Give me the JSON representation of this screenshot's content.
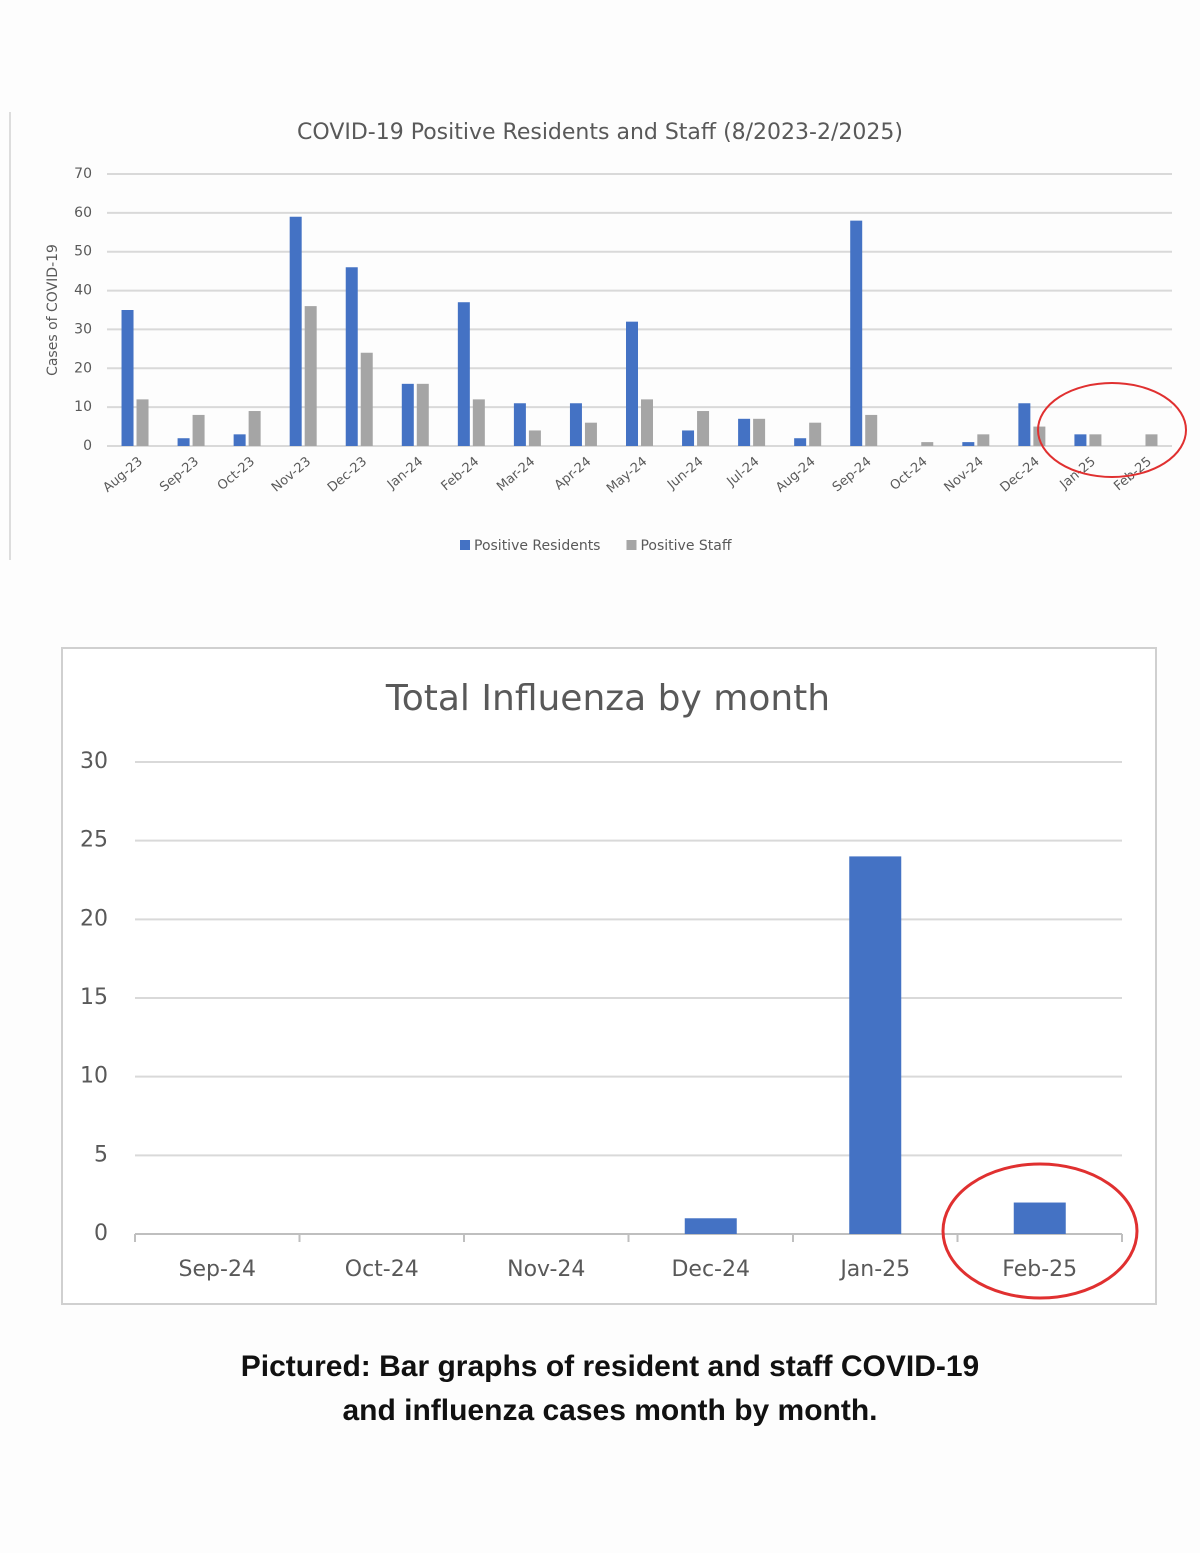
{
  "chart_data": [
    {
      "type": "bar",
      "title": "COVID-19 Positive Residents and Staff (8/2023-2/2025)",
      "y_label": "Cases of COVID-19",
      "categories": [
        "Aug-23",
        "Sep-23",
        "Oct-23",
        "Nov-23",
        "Dec-23",
        "Jan-24",
        "Feb-24",
        "Mar-24",
        "Apr-24",
        "May-24",
        "Jun-24",
        "Jul-24",
        "Aug-24",
        "Sep-24",
        "Oct-24",
        "Nov-24",
        "Dec-24",
        "Jan-25",
        "Feb-25"
      ],
      "series": [
        {
          "name": "Positive Residents",
          "color": "#4472c4",
          "values": [
            35,
            2,
            3,
            59,
            46,
            16,
            37,
            11,
            11,
            32,
            4,
            7,
            2,
            58,
            0,
            1,
            11,
            3,
            0
          ]
        },
        {
          "name": "Positive Staff",
          "color": "#a5a5a5",
          "values": [
            12,
            8,
            9,
            36,
            24,
            16,
            12,
            4,
            6,
            12,
            9,
            7,
            6,
            8,
            1,
            3,
            5,
            3,
            3
          ]
        }
      ],
      "ylim": [
        0,
        70
      ],
      "yticks": [
        0,
        10,
        20,
        30,
        40,
        50,
        60,
        70
      ],
      "grid": true,
      "legend": "bottom"
    },
    {
      "type": "bar",
      "title": "Total Influenza by month",
      "categories": [
        "Sep-24",
        "Oct-24",
        "Nov-24",
        "Dec-24",
        "Jan-25",
        "Feb-25"
      ],
      "values": [
        0,
        0,
        0,
        1,
        24,
        2
      ],
      "color": "#4472c4",
      "ylim": [
        0,
        30
      ],
      "yticks": [
        0,
        5,
        10,
        15,
        20,
        25,
        30
      ],
      "grid": true
    }
  ],
  "caption": [
    "Pictured: Bar graphs of resident and staff COVID-19",
    "and influenza cases month by month."
  ]
}
